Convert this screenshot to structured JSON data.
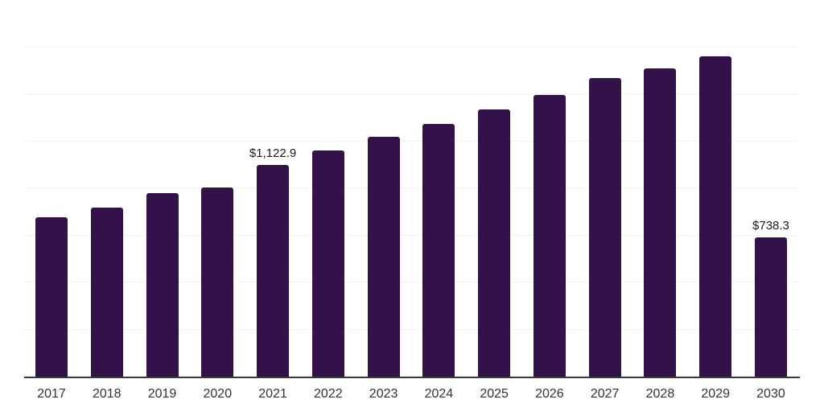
{
  "chart_data": {
    "type": "bar",
    "title": "",
    "xlabel": "",
    "ylabel": "",
    "categories": [
      "2017",
      "2018",
      "2019",
      "2020",
      "2021",
      "2022",
      "2023",
      "2024",
      "2025",
      "2026",
      "2027",
      "2028",
      "2029",
      "2030"
    ],
    "values": [
      845,
      897,
      973,
      1005,
      1122.9,
      1200,
      1273,
      1342,
      1419,
      1494,
      1586,
      1638,
      1702,
      738.3
    ],
    "annotations": {
      "2021": "$1,122.9",
      "2030": "$738.3"
    },
    "ylim": [
      0,
      2000
    ],
    "gridline_values": [
      250,
      500,
      750,
      1000,
      1250,
      1500,
      1750,
      2000
    ],
    "grid": "horizontal",
    "legend_position": "none",
    "colors": {
      "bar": "#33124a",
      "gridline": "#f2f2f2",
      "axis_line": "#3a3a3a",
      "tick_label": "#333333",
      "data_label": "#1a1a1a",
      "background": "#ffffff"
    }
  }
}
